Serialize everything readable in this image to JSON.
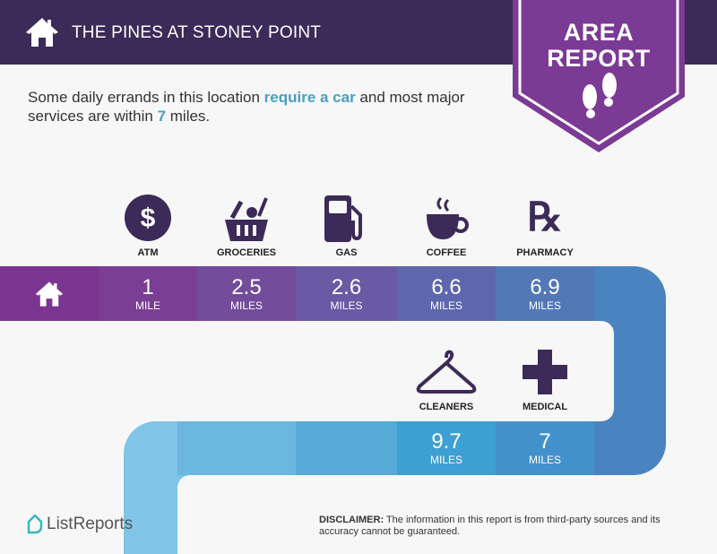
{
  "header": {
    "title": "THE PINES AT STONEY POINT",
    "icon": "house-icon"
  },
  "badge": {
    "line1": "AREA",
    "line2": "REPORT",
    "icon": "footprints-icon"
  },
  "intro": {
    "part1": "Some daily errands in this location ",
    "highlight1": "require a car",
    "part2": " and most major services are within ",
    "highlight2": "7",
    "part3": " miles."
  },
  "colors": {
    "header": "#3c2a58",
    "accent": "#4a9fc2",
    "badge": "#7b3a94",
    "icons": "#3c2a58"
  },
  "services_top": [
    {
      "label": "ATM",
      "value": "1",
      "unit": "MILE",
      "icon": "dollar-icon"
    },
    {
      "label": "GROCERIES",
      "value": "2.5",
      "unit": "MILES",
      "icon": "grocery-basket-icon"
    },
    {
      "label": "GAS",
      "value": "2.6",
      "unit": "MILES",
      "icon": "gas-pump-icon"
    },
    {
      "label": "COFFEE",
      "value": "6.6",
      "unit": "MILES",
      "icon": "coffee-cup-icon"
    },
    {
      "label": "PHARMACY",
      "value": "6.9",
      "unit": "MILES",
      "icon": "rx-icon"
    }
  ],
  "services_bottom": [
    {
      "label": "CLEANERS",
      "value": "9.7",
      "unit": "MILES",
      "icon": "hanger-icon"
    },
    {
      "label": "MEDICAL",
      "value": "7",
      "unit": "MILES",
      "icon": "medical-cross-icon"
    }
  ],
  "footer": {
    "logo": "ListReports",
    "disclaimer_label": "DISCLAIMER:",
    "disclaimer_text": " The information in this report is from third-party sources and its accuracy cannot be guaranteed."
  }
}
